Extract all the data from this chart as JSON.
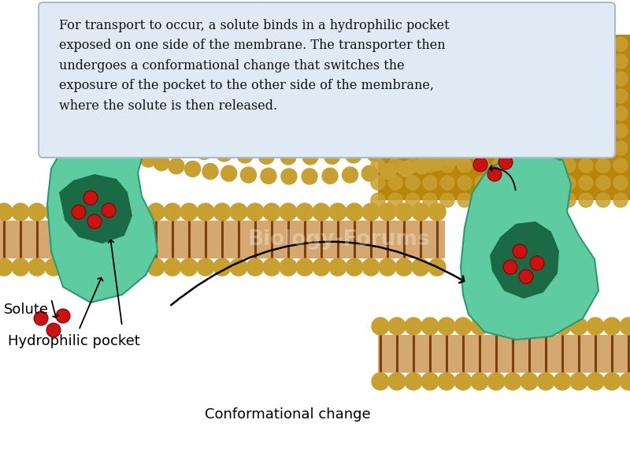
{
  "background_color": "#ffffff",
  "membrane_head_color": "#B8860B",
  "membrane_head_color2": "#C8A030",
  "membrane_tail_color": "#7A4010",
  "membrane_interior_color": "#D4A870",
  "transporter_color": "#5ECBA0",
  "transporter_edge": "#2A9A70",
  "transporter_dark": "#1A6A45",
  "solute_color": "#CC1111",
  "solute_edge": "#880000",
  "label_hydrophilic": "Hydrophilic pocket",
  "label_conformational": "Conformational change",
  "label_solute": "Solute",
  "caption_bg": "#E0EAF5",
  "caption_border": "#AABBCC",
  "caption_text": "For transport to occur, a solute binds in a hydrophilic pocket\nexposed on one side of the membrane. The transporter then\nundergoes a conformational change that switches the\nexposure of the pocket to the other side of the membrane,\nwhere the solute is then released.",
  "watermark": "Biology-Forums",
  "fig_width": 8.0,
  "fig_height": 5.99
}
